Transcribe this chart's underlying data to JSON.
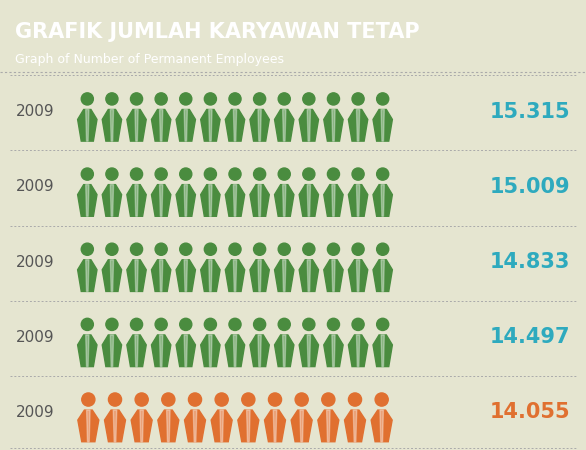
{
  "title_main": "GRAFIK JUMLAH KARYAWAN TETAP",
  "title_sub": "Graph of Number of Permanent Employees",
  "header_bg": "#2eaabe",
  "body_bg": "#e5e5d0",
  "rows": [
    {
      "year": "2009",
      "value": "15.315",
      "color": "#4a8c3f",
      "num_icons": 13
    },
    {
      "year": "2009",
      "value": "15.009",
      "color": "#4a8c3f",
      "num_icons": 13
    },
    {
      "year": "2009",
      "value": "14.833",
      "color": "#4a8c3f",
      "num_icons": 13
    },
    {
      "year": "2009",
      "value": "14.497",
      "color": "#4a8c3f",
      "num_icons": 13
    },
    {
      "year": "2009",
      "value": "14.055",
      "color": "#e07030",
      "num_icons": 12
    }
  ],
  "year_color": "#555555",
  "value_color_green": "#2eaabe",
  "value_color_orange": "#e07030",
  "dotted_line_color": "#aaaaaa",
  "title_main_fontsize": 15,
  "title_sub_fontsize": 9,
  "year_fontsize": 11,
  "value_fontsize": 15
}
